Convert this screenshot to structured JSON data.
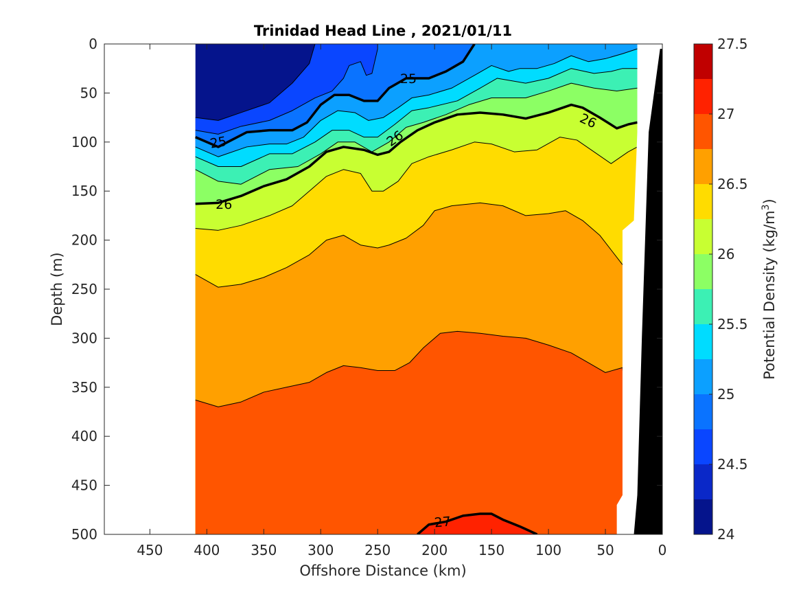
{
  "chart_data": {
    "type": "contour",
    "title": "Trinidad Head Line , 2021/01/11",
    "xlabel": "Offshore Distance (km)",
    "ylabel": "Depth (m)",
    "xlim": [
      490,
      0
    ],
    "ylim": [
      0,
      500
    ],
    "x_reversed": true,
    "y_reversed": true,
    "x_ticks": [
      450,
      400,
      350,
      300,
      250,
      200,
      150,
      100,
      50,
      0
    ],
    "y_ticks": [
      0,
      50,
      100,
      150,
      200,
      250,
      300,
      350,
      400,
      450,
      500
    ],
    "colorbar": {
      "label": "Potential Density (kg/m3)",
      "ticks": [
        24,
        24.5,
        25,
        25.5,
        26,
        26.5,
        27,
        27.5
      ],
      "levels": [
        24,
        24.25,
        24.5,
        24.75,
        25,
        25.25,
        25.5,
        25.75,
        26,
        26.25,
        26.5,
        26.75,
        27,
        27.25,
        27.5
      ],
      "colors": [
        "#05148c",
        "#0a28c8",
        "#0a46ff",
        "#0a73ff",
        "#0ca0ff",
        "#00dcff",
        "#3cf0b4",
        "#8cff64",
        "#c8ff32",
        "#ffdc00",
        "#ffa000",
        "#ff5500",
        "#ff2200",
        "#c00000"
      ]
    },
    "data_extent_x": [
      410,
      22
    ],
    "labeled_contours": [
      {
        "level": 25,
        "labels": [
          "25",
          "25"
        ]
      },
      {
        "level": 26,
        "labels": [
          "26",
          "26",
          "26"
        ]
      },
      {
        "level": 27,
        "labels": [
          "27"
        ]
      }
    ],
    "contour_lines": [
      {
        "level": 24.5,
        "points": [
          [
            410,
            75
          ],
          [
            390,
            78
          ],
          [
            370,
            70
          ],
          [
            345,
            60
          ],
          [
            325,
            40
          ],
          [
            310,
            20
          ],
          [
            305,
            0
          ]
        ]
      },
      {
        "level": 24.75,
        "points": [
          [
            410,
            88
          ],
          [
            390,
            92
          ],
          [
            370,
            84
          ],
          [
            345,
            78
          ],
          [
            325,
            68
          ],
          [
            305,
            55
          ],
          [
            290,
            48
          ],
          [
            280,
            35
          ],
          [
            275,
            22
          ],
          [
            265,
            18
          ],
          [
            260,
            32
          ],
          [
            255,
            30
          ],
          [
            250,
            5
          ],
          [
            250,
            0
          ]
        ]
      },
      {
        "level": 25,
        "points": [
          [
            410,
            95
          ],
          [
            390,
            105
          ],
          [
            365,
            90
          ],
          [
            345,
            88
          ],
          [
            325,
            88
          ],
          [
            312,
            80
          ],
          [
            300,
            62
          ],
          [
            288,
            52
          ],
          [
            275,
            52
          ],
          [
            262,
            58
          ],
          [
            250,
            58
          ],
          [
            240,
            45
          ],
          [
            225,
            35
          ],
          [
            205,
            35
          ],
          [
            190,
            28
          ],
          [
            175,
            18
          ],
          [
            165,
            0
          ]
        ]
      },
      {
        "level": 25.25,
        "points": [
          [
            410,
            105
          ],
          [
            390,
            115
          ],
          [
            365,
            105
          ],
          [
            345,
            102
          ],
          [
            330,
            102
          ],
          [
            315,
            95
          ],
          [
            300,
            78
          ],
          [
            285,
            68
          ],
          [
            270,
            70
          ],
          [
            258,
            78
          ],
          [
            245,
            75
          ],
          [
            232,
            65
          ],
          [
            220,
            55
          ],
          [
            205,
            52
          ],
          [
            185,
            45
          ],
          [
            165,
            32
          ],
          [
            150,
            22
          ],
          [
            135,
            28
          ],
          [
            125,
            25
          ],
          [
            110,
            25
          ],
          [
            95,
            20
          ],
          [
            80,
            12
          ],
          [
            65,
            18
          ],
          [
            50,
            15
          ],
          [
            35,
            10
          ],
          [
            22,
            5
          ]
        ]
      },
      {
        "level": 25.5,
        "points": [
          [
            410,
            115
          ],
          [
            390,
            125
          ],
          [
            370,
            125
          ],
          [
            345,
            112
          ],
          [
            325,
            112
          ],
          [
            305,
            100
          ],
          [
            290,
            88
          ],
          [
            275,
            88
          ],
          [
            262,
            95
          ],
          [
            250,
            95
          ],
          [
            235,
            82
          ],
          [
            220,
            68
          ],
          [
            205,
            65
          ],
          [
            180,
            58
          ],
          [
            160,
            45
          ],
          [
            145,
            35
          ],
          [
            120,
            40
          ],
          [
            100,
            35
          ],
          [
            80,
            25
          ],
          [
            60,
            30
          ],
          [
            45,
            28
          ],
          [
            35,
            25
          ],
          [
            22,
            25
          ]
        ]
      },
      {
        "level": 25.75,
        "points": [
          [
            410,
            128
          ],
          [
            390,
            140
          ],
          [
            370,
            143
          ],
          [
            345,
            128
          ],
          [
            320,
            125
          ],
          [
            300,
            112
          ],
          [
            285,
            100
          ],
          [
            270,
            100
          ],
          [
            255,
            110
          ],
          [
            240,
            100
          ],
          [
            225,
            85
          ],
          [
            210,
            80
          ],
          [
            190,
            72
          ],
          [
            170,
            62
          ],
          [
            150,
            55
          ],
          [
            120,
            55
          ],
          [
            100,
            48
          ],
          [
            80,
            40
          ],
          [
            60,
            45
          ],
          [
            40,
            48
          ],
          [
            22,
            45
          ]
        ]
      },
      {
        "level": 26,
        "points": [
          [
            410,
            163
          ],
          [
            390,
            162
          ],
          [
            370,
            155
          ],
          [
            350,
            145
          ],
          [
            330,
            138
          ],
          [
            310,
            125
          ],
          [
            295,
            110
          ],
          [
            280,
            105
          ],
          [
            262,
            108
          ],
          [
            250,
            113
          ],
          [
            240,
            110
          ],
          [
            230,
            100
          ],
          [
            215,
            88
          ],
          [
            200,
            80
          ],
          [
            180,
            72
          ],
          [
            160,
            70
          ],
          [
            140,
            72
          ],
          [
            120,
            76
          ],
          [
            100,
            70
          ],
          [
            80,
            62
          ],
          [
            70,
            65
          ],
          [
            55,
            75
          ],
          [
            40,
            86
          ],
          [
            30,
            82
          ],
          [
            22,
            80
          ]
        ]
      },
      {
        "level": 26.25,
        "points": [
          [
            410,
            188
          ],
          [
            390,
            190
          ],
          [
            370,
            185
          ],
          [
            345,
            175
          ],
          [
            325,
            165
          ],
          [
            310,
            150
          ],
          [
            295,
            135
          ],
          [
            280,
            128
          ],
          [
            265,
            132
          ],
          [
            255,
            150
          ],
          [
            245,
            150
          ],
          [
            232,
            140
          ],
          [
            220,
            122
          ],
          [
            205,
            115
          ],
          [
            185,
            108
          ],
          [
            165,
            100
          ],
          [
            150,
            102
          ],
          [
            130,
            110
          ],
          [
            110,
            108
          ],
          [
            90,
            95
          ],
          [
            75,
            98
          ],
          [
            60,
            110
          ],
          [
            45,
            122
          ],
          [
            30,
            110
          ],
          [
            22,
            105
          ]
        ]
      },
      {
        "level": 26.5,
        "points": [
          [
            410,
            235
          ],
          [
            390,
            248
          ],
          [
            370,
            245
          ],
          [
            350,
            238
          ],
          [
            330,
            228
          ],
          [
            310,
            215
          ],
          [
            295,
            200
          ],
          [
            280,
            195
          ],
          [
            265,
            205
          ],
          [
            250,
            208
          ],
          [
            240,
            205
          ],
          [
            225,
            198
          ],
          [
            210,
            185
          ],
          [
            200,
            170
          ],
          [
            185,
            165
          ],
          [
            160,
            162
          ],
          [
            140,
            165
          ],
          [
            120,
            175
          ],
          [
            100,
            173
          ],
          [
            85,
            170
          ],
          [
            70,
            180
          ],
          [
            55,
            195
          ],
          [
            45,
            210
          ],
          [
            35,
            225
          ],
          [
            30,
            230
          ]
        ]
      },
      {
        "level": 26.75,
        "points": [
          [
            410,
            363
          ],
          [
            390,
            370
          ],
          [
            370,
            365
          ],
          [
            350,
            355
          ],
          [
            330,
            350
          ],
          [
            310,
            345
          ],
          [
            295,
            335
          ],
          [
            280,
            328
          ],
          [
            265,
            330
          ],
          [
            250,
            333
          ],
          [
            235,
            333
          ],
          [
            222,
            325
          ],
          [
            210,
            310
          ],
          [
            195,
            295
          ],
          [
            180,
            293
          ],
          [
            160,
            295
          ],
          [
            140,
            298
          ],
          [
            120,
            300
          ],
          [
            100,
            307
          ],
          [
            80,
            315
          ],
          [
            65,
            325
          ],
          [
            50,
            335
          ],
          [
            35,
            330
          ],
          [
            30,
            385
          ]
        ]
      },
      {
        "level": 27,
        "points": [
          [
            215,
            500
          ],
          [
            205,
            490
          ],
          [
            190,
            487
          ],
          [
            175,
            481
          ],
          [
            160,
            479
          ],
          [
            150,
            479
          ],
          [
            140,
            485
          ],
          [
            125,
            492
          ],
          [
            110,
            500
          ]
        ]
      }
    ],
    "contour_label_positions": [
      {
        "text": "25",
        "x": 223,
        "y": 35,
        "rotate": 0
      },
      {
        "text": "25",
        "x": 390,
        "y": 100,
        "rotate": -10
      },
      {
        "text": "26",
        "x": 235,
        "y": 96,
        "rotate": -35
      },
      {
        "text": "26",
        "x": 385,
        "y": 163,
        "rotate": 0
      },
      {
        "text": "26",
        "x": 65,
        "y": 78,
        "rotate": 25
      },
      {
        "text": "27",
        "x": 193,
        "y": 487,
        "rotate": -5
      }
    ]
  }
}
